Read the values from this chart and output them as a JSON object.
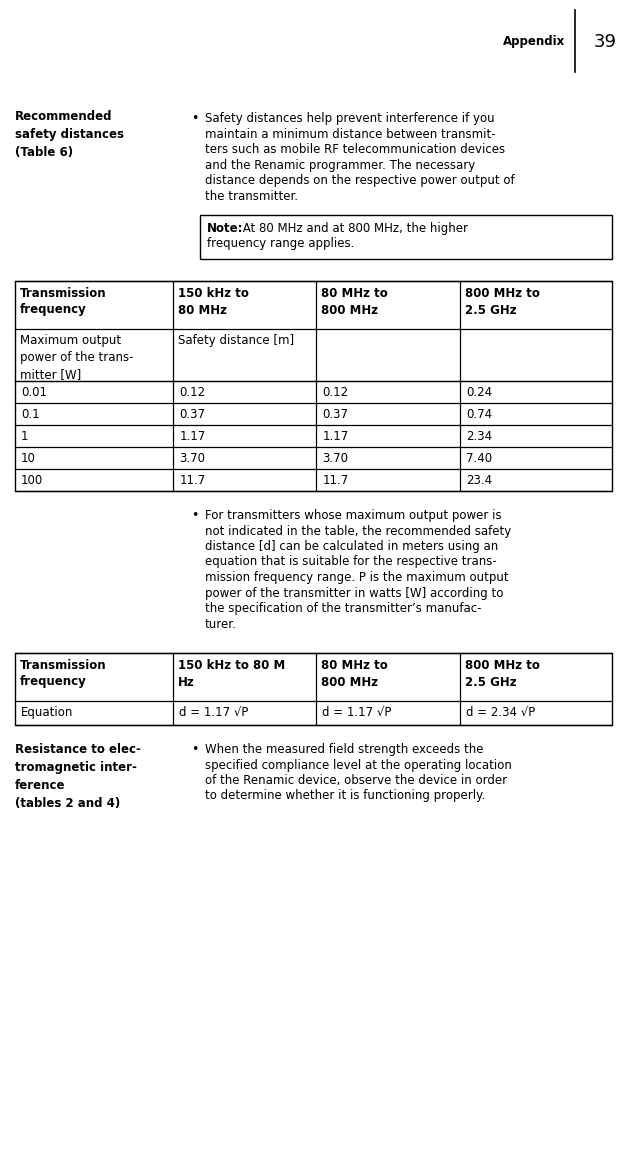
{
  "page_number": "39",
  "header_label": "Appendix",
  "section1_label": "Recommended\nsafety distances\n(Table 6)",
  "section1_bullet": "Safety distances help prevent interference if you maintain a minimum distance between transmit-ters such as mobile RF telecommunication devices and the Renamic programmer. The necessary distance depends on the respective power output of the transmitter.",
  "note_bold": "Note:",
  "note_text": " At 80 MHz and at 800 MHz, the higher\nfrequency range applies.",
  "table1_headers": [
    "Transmission\nfrequency",
    "150 kHz to\n80 MHz",
    "80 MHz to\n800 MHz",
    "800 MHz to\n2.5 GHz"
  ],
  "table1_subrow_col0": "Maximum output\npower of the trans-\nmitter [W]",
  "table1_subrow_col1": "Safety distance [m]",
  "table1_rows": [
    [
      "0.01",
      "0.12",
      "0.12",
      "0.24"
    ],
    [
      "0.1",
      "0.37",
      "0.37",
      "0.74"
    ],
    [
      "1",
      "1.17",
      "1.17",
      "2.34"
    ],
    [
      "10",
      "3.70",
      "3.70",
      "7.40"
    ],
    [
      "100",
      "11.7",
      "11.7",
      "23.4"
    ]
  ],
  "section2_bullet_lines": [
    "For transmitters whose maximum output power is",
    "not indicated in the table, the recommended safety",
    "distance [d] can be calculated in meters using an",
    "equation that is suitable for the respective trans-",
    "mission frequency range. P is the maximum output",
    "power of the transmitter in watts [W] according to",
    "the specification of the transmitter’s manufac-",
    "turer."
  ],
  "table2_headers": [
    "Transmission\nfrequency",
    "150 kHz to 80 M\nHz",
    "80 MHz to\n800 MHz",
    "800 MHz to\n2.5 GHz"
  ],
  "table2_rows": [
    [
      "Equation",
      "d = 1.17 √P",
      "d = 1.17 √P",
      "d = 2.34 √P"
    ]
  ],
  "section3_label": "Resistance to elec-\ntromagnetic inter-\nference\n(tables 2 and 4)",
  "section3_bullet_lines": [
    "When the measured field strength exceeds the",
    "specified compliance level at the operating location",
    "of the Renamic device, observe the device in order",
    "to determine whether it is functioning properly."
  ],
  "bg_color": "#ffffff",
  "font_name": "DejaVu Sans"
}
